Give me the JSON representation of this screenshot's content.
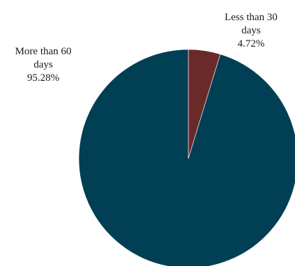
{
  "chart_data": {
    "type": "pie",
    "title": "",
    "slices": [
      {
        "name": "Less than 30 days",
        "label_lines": [
          "Less than 30",
          "days"
        ],
        "percent_label": "4.72%",
        "value": 4.72,
        "color": "#6b2a2a"
      },
      {
        "name": "More than 60 days",
        "label_lines": [
          "More than 60",
          "days"
        ],
        "percent_label": "95.28%",
        "value": 95.28,
        "color": "#003f54"
      }
    ],
    "start_angle_deg": 0,
    "direction": "clockwise",
    "legend": "none"
  }
}
